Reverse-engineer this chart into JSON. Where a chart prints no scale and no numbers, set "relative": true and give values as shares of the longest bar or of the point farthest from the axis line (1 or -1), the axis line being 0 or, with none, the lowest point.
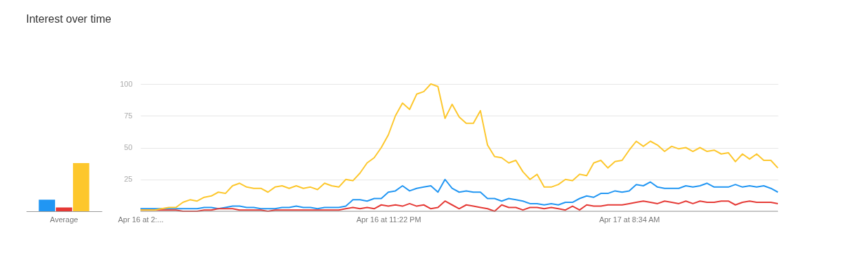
{
  "chart_data": [
    {
      "type": "bar",
      "title": "Interest over time",
      "categories": [
        "Average"
      ],
      "relative": true,
      "series": [
        {
          "color": "#2196f3",
          "values": [
            0.24
          ]
        },
        {
          "color": "#e53935",
          "values": [
            0.08
          ]
        },
        {
          "color": "#fdc72c",
          "values": [
            1
          ]
        }
      ]
    },
    {
      "type": "line",
      "ylim": [
        0,
        100
      ],
      "yticks": [
        {
          "value": 0,
          "label": null
        },
        25,
        50,
        75,
        100
      ],
      "grid": "y",
      "marker": "none",
      "line_style": "solid",
      "categories": [
        "Apr 16 at 2:...",
        null,
        null,
        null,
        null,
        null,
        null,
        null,
        null,
        null,
        null,
        null,
        null,
        null,
        null,
        null,
        null,
        null,
        null,
        null,
        null,
        null,
        null,
        null,
        null,
        null,
        null,
        null,
        null,
        null,
        null,
        null,
        null,
        null,
        null,
        "Apr 16 at 11:22 PM",
        null,
        null,
        null,
        null,
        null,
        null,
        null,
        null,
        null,
        null,
        null,
        null,
        null,
        null,
        null,
        null,
        null,
        null,
        null,
        null,
        null,
        null,
        null,
        null,
        null,
        null,
        null,
        null,
        null,
        null,
        null,
        null,
        null,
        "Apr 17 at 8:34 AM",
        null,
        null,
        null,
        null,
        null,
        null,
        null,
        null,
        null,
        null,
        null,
        null,
        null,
        null,
        null,
        null,
        null,
        null,
        null,
        null,
        null
      ],
      "series": [
        {
          "color": "#2196f3",
          "values": [
            2,
            2,
            2,
            2,
            2,
            2,
            2,
            2,
            2,
            3,
            3,
            2,
            3,
            4,
            4,
            3,
            3,
            2,
            2,
            2,
            3,
            3,
            4,
            3,
            3,
            2,
            3,
            3,
            3,
            4,
            9,
            9,
            8,
            10,
            10,
            15,
            16,
            20,
            16,
            18,
            19,
            20,
            15,
            25,
            18,
            15,
            16,
            15,
            15,
            10,
            10,
            8,
            10,
            9,
            8,
            6,
            6,
            5,
            6,
            5,
            7,
            7,
            10,
            12,
            11,
            14,
            14,
            16,
            15,
            16,
            21,
            20,
            23,
            19,
            18,
            18,
            18,
            20,
            19,
            20,
            22,
            19,
            19,
            19,
            21,
            19,
            20,
            19,
            20,
            18,
            15
          ]
        },
        {
          "color": "#e53935",
          "values": [
            1,
            1,
            1,
            1,
            1,
            1,
            0,
            0,
            0,
            1,
            1,
            2,
            2,
            2,
            1,
            1,
            1,
            1,
            0,
            1,
            1,
            1,
            1,
            1,
            1,
            1,
            1,
            1,
            1,
            2,
            3,
            2,
            3,
            2,
            5,
            4,
            5,
            4,
            6,
            4,
            5,
            2,
            3,
            8,
            5,
            2,
            5,
            4,
            3,
            2,
            0,
            5,
            3,
            3,
            1,
            3,
            3,
            2,
            3,
            2,
            1,
            4,
            1,
            5,
            4,
            4,
            5,
            5,
            5,
            6,
            7,
            8,
            7,
            6,
            8,
            7,
            6,
            8,
            6,
            8,
            7,
            7,
            8,
            8,
            5,
            7,
            8,
            7,
            7,
            7,
            6
          ]
        },
        {
          "color": "#fdc72c",
          "values": [
            1,
            1,
            1,
            2,
            3,
            3,
            7,
            9,
            8,
            11,
            12,
            15,
            14,
            20,
            22,
            19,
            18,
            18,
            15,
            19,
            20,
            18,
            20,
            18,
            19,
            17,
            22,
            20,
            19,
            25,
            24,
            30,
            38,
            42,
            50,
            60,
            75,
            85,
            80,
            92,
            94,
            100,
            98,
            73,
            84,
            74,
            69,
            69,
            79,
            52,
            43,
            42,
            38,
            40,
            31,
            25,
            29,
            19,
            19,
            21,
            25,
            24,
            29,
            28,
            38,
            40,
            34,
            39,
            40,
            48,
            55,
            51,
            55,
            52,
            47,
            51,
            49,
            50,
            47,
            50,
            47,
            48,
            45,
            46,
            39,
            45,
            41,
            45,
            40,
            40,
            34
          ]
        }
      ]
    }
  ]
}
